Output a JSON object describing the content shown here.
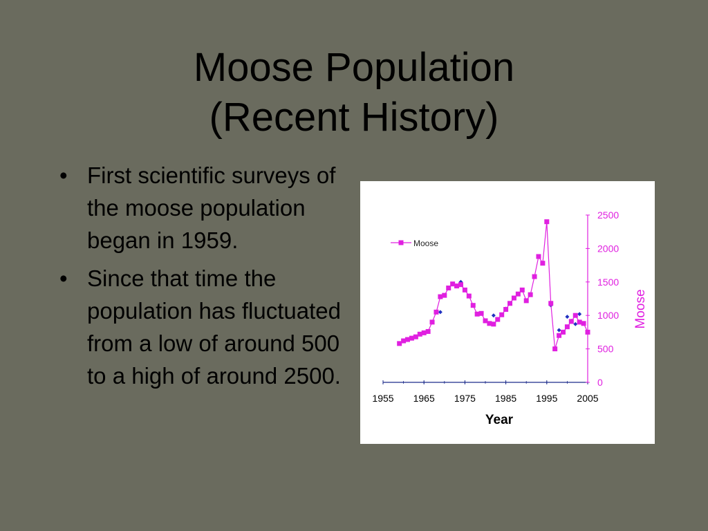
{
  "slide": {
    "title_line1": "Moose Population",
    "title_line2": "(Recent History)",
    "bullets": [
      "First scientific surveys of the moose population began in 1959.",
      "Since that time the population has fluctuated from a low of around 500 to a high of around 2500."
    ],
    "bullet_glyph": "•"
  },
  "chart_data": {
    "type": "line",
    "xlabel": "Year",
    "ylabel": "Moose",
    "xlim": [
      1955,
      2005
    ],
    "ylim": [
      0,
      2500
    ],
    "x_ticks": [
      1955,
      1965,
      1975,
      1985,
      1995,
      2005
    ],
    "y_ticks": [
      0,
      500,
      1000,
      1500,
      2000,
      2500
    ],
    "legend": "top-left",
    "grid": false,
    "colors": {
      "moose": "#e020e0",
      "wolves": "#2030c0",
      "axis_right": "#e020e0"
    },
    "series": [
      {
        "name": "Moose",
        "x": [
          1959,
          1960,
          1961,
          1962,
          1963,
          1964,
          1965,
          1966,
          1967,
          1968,
          1969,
          1970,
          1971,
          1972,
          1973,
          1974,
          1975,
          1976,
          1977,
          1978,
          1979,
          1980,
          1981,
          1982,
          1983,
          1984,
          1985,
          1986,
          1987,
          1988,
          1989,
          1990,
          1991,
          1992,
          1993,
          1994,
          1995,
          1996,
          1997,
          1998,
          1999,
          2000,
          2001,
          2002,
          2003,
          2004,
          2005
        ],
        "values": [
          580,
          620,
          640,
          660,
          680,
          720,
          740,
          760,
          900,
          1050,
          1280,
          1300,
          1410,
          1470,
          1440,
          1460,
          1380,
          1290,
          1150,
          1020,
          1030,
          920,
          880,
          870,
          940,
          1010,
          1090,
          1180,
          1260,
          1320,
          1380,
          1220,
          1310,
          1580,
          1880,
          1780,
          2400,
          1180,
          500,
          700,
          750,
          830,
          910,
          1000,
          900,
          880,
          750
        ]
      }
    ],
    "wolf_markers": {
      "x": [
        1969,
        1974,
        1982,
        1985,
        1996,
        1998,
        2000,
        2001,
        2002,
        2003
      ],
      "values": [
        1050,
        1500,
        1000,
        1100,
        1150,
        780,
        980,
        920,
        870,
        1020
      ]
    }
  }
}
